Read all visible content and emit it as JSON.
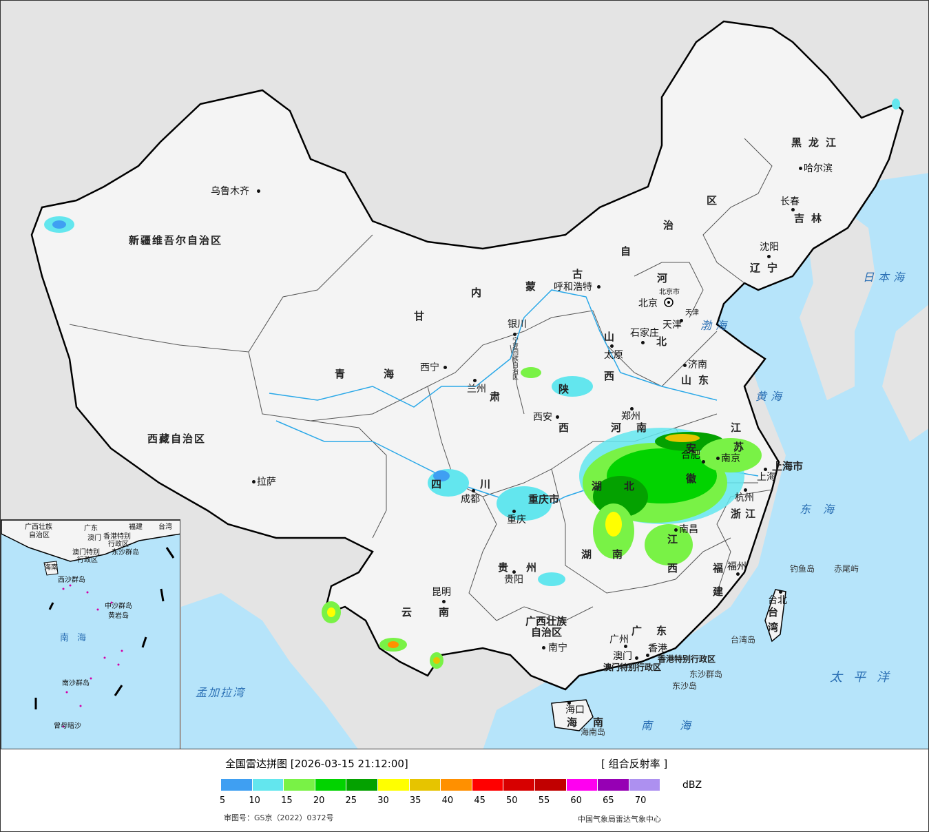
{
  "map": {
    "provinces": [
      {
        "text": "新疆维吾尔自治区"
      },
      {
        "text": "西藏自治区"
      },
      {
        "text": "青"
      },
      {
        "text": "海"
      },
      {
        "text": "甘"
      },
      {
        "text": "肃"
      },
      {
        "text": "内"
      },
      {
        "text": "蒙"
      },
      {
        "text": "古"
      },
      {
        "text": "自"
      },
      {
        "text": "治"
      },
      {
        "text": "区"
      },
      {
        "text": "黑龙江"
      },
      {
        "text": "吉林"
      },
      {
        "text": "辽宁"
      },
      {
        "text": "河"
      },
      {
        "text": "北"
      },
      {
        "text": "山"
      },
      {
        "text": "西"
      },
      {
        "text": "山东"
      },
      {
        "text": "陕"
      },
      {
        "text": "西"
      },
      {
        "text": "河"
      },
      {
        "text": "南"
      },
      {
        "text": "四"
      },
      {
        "text": "川"
      },
      {
        "text": "重庆市"
      },
      {
        "text": "湖"
      },
      {
        "text": "北"
      },
      {
        "text": "安"
      },
      {
        "text": "徽"
      },
      {
        "text": "江"
      },
      {
        "text": "苏"
      },
      {
        "text": "浙江"
      },
      {
        "text": "上海市"
      },
      {
        "text": "湖"
      },
      {
        "text": "南"
      },
      {
        "text": "江"
      },
      {
        "text": "西"
      },
      {
        "text": "福"
      },
      {
        "text": "建"
      },
      {
        "text": "贵"
      },
      {
        "text": "州"
      },
      {
        "text": "云"
      },
      {
        "text": "南"
      },
      {
        "text": "广西壮族"
      },
      {
        "text": "自治区"
      },
      {
        "text": "广"
      },
      {
        "text": "东"
      },
      {
        "text": "海"
      },
      {
        "text": "南"
      },
      {
        "text": "台"
      },
      {
        "text": "湾"
      },
      {
        "text": "北京市"
      },
      {
        "text": "天津"
      },
      {
        "text": "宁夏回族自治区"
      },
      {
        "text": "香港特别行政区"
      },
      {
        "text": "澳门特别行政区"
      }
    ],
    "cities": [
      {
        "text": "乌鲁木齐"
      },
      {
        "text": "拉萨"
      },
      {
        "text": "西宁"
      },
      {
        "text": "兰州"
      },
      {
        "text": "银川"
      },
      {
        "text": "呼和浩特"
      },
      {
        "text": "哈尔滨"
      },
      {
        "text": "长春"
      },
      {
        "text": "沈阳"
      },
      {
        "text": "北京"
      },
      {
        "text": "天津"
      },
      {
        "text": "石家庄"
      },
      {
        "text": "太原"
      },
      {
        "text": "济南"
      },
      {
        "text": "郑州"
      },
      {
        "text": "西安"
      },
      {
        "text": "成都"
      },
      {
        "text": "重庆"
      },
      {
        "text": "合肥"
      },
      {
        "text": "南京"
      },
      {
        "text": "上海"
      },
      {
        "text": "杭州"
      },
      {
        "text": "南昌"
      },
      {
        "text": "福州"
      },
      {
        "text": "台北"
      },
      {
        "text": "贵阳"
      },
      {
        "text": "昆明"
      },
      {
        "text": "南宁"
      },
      {
        "text": "广州"
      },
      {
        "text": "香港"
      },
      {
        "text": "澳门"
      },
      {
        "text": "海口"
      }
    ],
    "seas": [
      {
        "text": "日本海"
      },
      {
        "text": "渤海"
      },
      {
        "text": "黄海"
      },
      {
        "text": "东海"
      },
      {
        "text": "太平洋"
      },
      {
        "text": "南海"
      },
      {
        "text": "孟加拉湾"
      }
    ],
    "islands": [
      {
        "text": "钓鱼岛"
      },
      {
        "text": "赤尾屿"
      },
      {
        "text": "台湾岛"
      },
      {
        "text": "东沙群岛"
      },
      {
        "text": "东沙岛"
      },
      {
        "text": "海南岛"
      }
    ],
    "inset": {
      "labels": [
        {
          "text": "广西壮族"
        },
        {
          "text": "自治区"
        },
        {
          "text": "广东"
        },
        {
          "text": "福建"
        },
        {
          "text": "台湾"
        },
        {
          "text": "澳门"
        },
        {
          "text": "香港特别"
        },
        {
          "text": "行政区"
        },
        {
          "text": "澳门特别"
        },
        {
          "text": "行政区"
        },
        {
          "text": "东沙群岛"
        },
        {
          "text": "海南"
        },
        {
          "text": "西沙群岛"
        },
        {
          "text": "中沙群岛"
        },
        {
          "text": "黄岩岛"
        },
        {
          "text": "南海"
        },
        {
          "text": "南沙群岛"
        },
        {
          "text": "曾母暗沙"
        }
      ]
    }
  },
  "legend": {
    "title": "全国雷达拼图 [2026-03-15 21:12:00]",
    "product": "[ 组合反射率 ]",
    "unit": "dBZ",
    "colors": [
      "#3f9ff2",
      "#63e6ee",
      "#79f246",
      "#02d300",
      "#04a100",
      "#ffff00",
      "#e6c400",
      "#ff9000",
      "#ff0000",
      "#d70000",
      "#c10000",
      "#ff00f0",
      "#9600b4",
      "#ad90f0"
    ],
    "ticks": [
      "5",
      "10",
      "15",
      "20",
      "25",
      "30",
      "35",
      "40",
      "45",
      "50",
      "55",
      "60",
      "65",
      "70"
    ],
    "approval": "审图号：GS京（2022）0372号",
    "source": "中国气象局雷达气象中心"
  }
}
